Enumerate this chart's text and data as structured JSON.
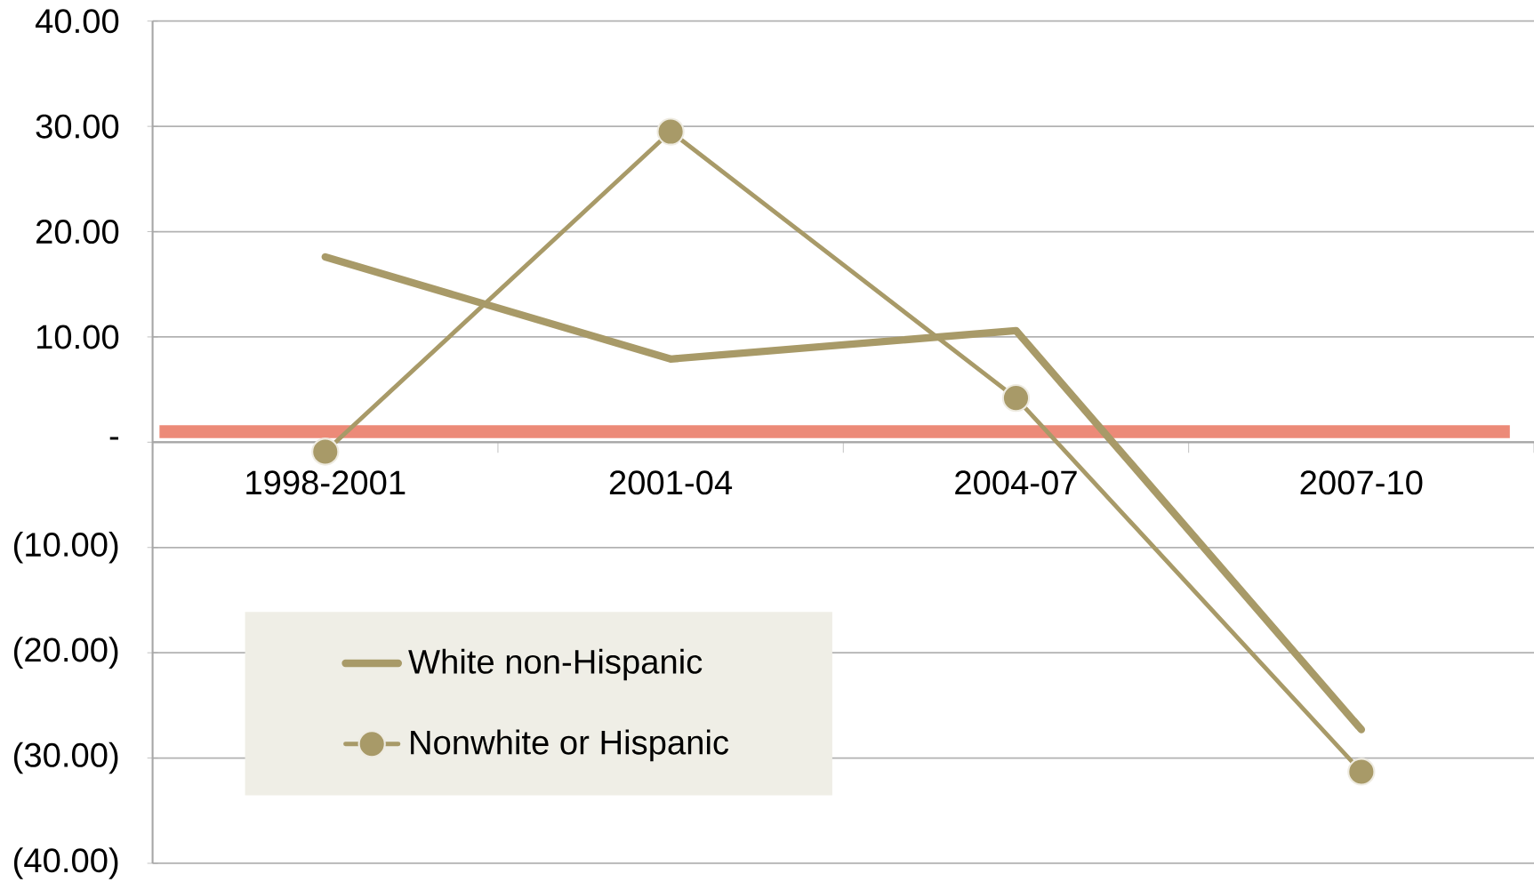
{
  "chart_data": {
    "type": "line",
    "categories": [
      "1998-2001",
      "2001-04",
      "2004-07",
      "2007-10"
    ],
    "series": [
      {
        "name": "White non-Hispanic",
        "color": "#a89a68",
        "values": [
          17.6,
          7.9,
          10.6,
          -27.3
        ],
        "marker": "none"
      },
      {
        "name": "Nonwhite or Hispanic",
        "color": "#a89a68",
        "values": [
          -0.9,
          29.5,
          4.2,
          -31.3
        ],
        "marker": "circle"
      }
    ],
    "ylim": [
      -40,
      40
    ],
    "yticks": [
      {
        "value": -40,
        "label": "(40.00)"
      },
      {
        "value": -30,
        "label": "(30.00)"
      },
      {
        "value": -20,
        "label": "(20.00)"
      },
      {
        "value": -10,
        "label": "(10.00)"
      },
      {
        "value": 0,
        "label": "-"
      },
      {
        "value": 10,
        "label": "10.00"
      },
      {
        "value": 20,
        "label": "20.00"
      },
      {
        "value": 30,
        "label": "30.00"
      },
      {
        "value": 40,
        "label": "40.00"
      }
    ],
    "ref_lines": [
      {
        "axis": "y",
        "value": 1,
        "color": "#ec8a78"
      }
    ],
    "grid": "y",
    "legend": "bottom left",
    "line_style": "solid"
  }
}
